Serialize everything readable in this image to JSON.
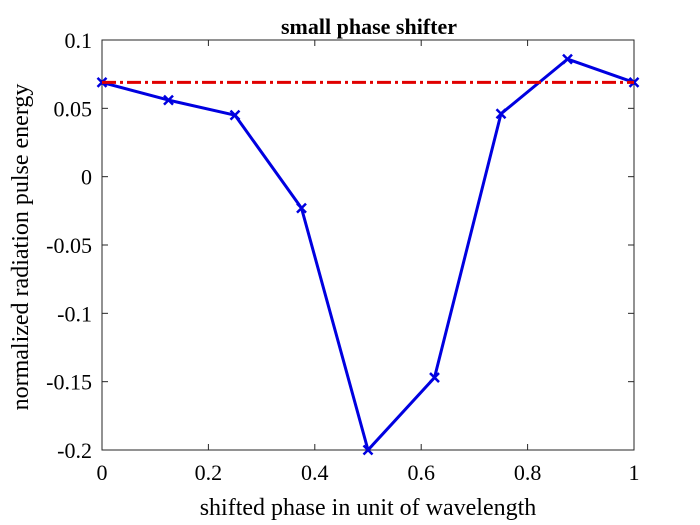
{
  "chart_data": {
    "type": "line",
    "title": "small phase shifter",
    "xlabel": "shifted phase in unit of wavelength",
    "ylabel": "normalized radiation pulse energy",
    "xlim": [
      0,
      1
    ],
    "ylim": [
      -0.2,
      0.1
    ],
    "xticks": [
      0,
      0.2,
      0.4,
      0.6,
      0.8,
      1
    ],
    "xtick_labels": [
      "0",
      "0.2",
      "0.4",
      "0.6",
      "0.8",
      "1"
    ],
    "yticks": [
      -0.2,
      -0.15,
      -0.1,
      -0.05,
      0,
      0.05,
      0.1
    ],
    "ytick_labels": [
      "-0.2",
      "-0.15",
      "-0.1",
      "-0.05",
      "0",
      "0.05",
      "0.1"
    ],
    "grid": false,
    "series": [
      {
        "color": "#0000e0",
        "marker": "x",
        "x": [
          0,
          0.125,
          0.25,
          0.375,
          0.5,
          0.625,
          0.75,
          0.875,
          1
        ],
        "y": [
          0.069,
          0.056,
          0.045,
          -0.023,
          -0.2,
          -0.147,
          0.046,
          0.086,
          0.069
        ]
      },
      {
        "color": "#e00000",
        "style": "dash-dot",
        "x": [
          0,
          1
        ],
        "y": [
          0.069,
          0.069
        ]
      }
    ]
  }
}
